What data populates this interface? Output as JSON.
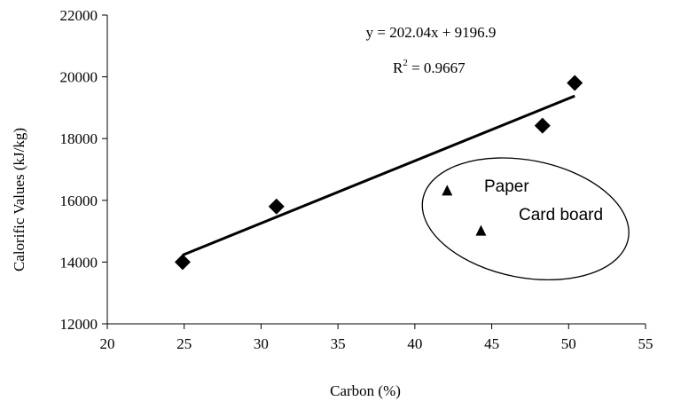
{
  "chart_data": {
    "type": "scatter",
    "title": "",
    "xlabel": "Carbon (%)",
    "ylabel": "Calorific Values (kJ/kg)",
    "xlim": [
      20,
      55
    ],
    "ylim": [
      12000,
      22000
    ],
    "x_ticks": [
      20,
      25,
      30,
      35,
      40,
      45,
      50,
      55
    ],
    "y_ticks": [
      12000,
      14000,
      16000,
      18000,
      20000,
      22000
    ],
    "grid": false,
    "legend": "none",
    "series": [
      {
        "marker": "diamond",
        "color": "#000000",
        "points": [
          {
            "x": 24.9,
            "y": 14000
          },
          {
            "x": 31.0,
            "y": 15800
          },
          {
            "x": 48.3,
            "y": 18420
          },
          {
            "x": 50.4,
            "y": 19800
          }
        ]
      },
      {
        "marker": "triangle",
        "color": "#000000",
        "points": [
          {
            "x": 42.1,
            "y": 16300
          },
          {
            "x": 44.3,
            "y": 15000
          }
        ]
      }
    ],
    "trendline": {
      "slope": 202.04,
      "intercept": 9196.9,
      "x_range": [
        24.9,
        50.4
      ],
      "equation_label": "y = 202.04x + 9196.9",
      "r2_prefix": "R",
      "r2_exponent": "2",
      "r2_value": " = 0.9667"
    },
    "annotations": {
      "paper_label": "Paper",
      "cardboard_label": "Card board",
      "ellipse_center": {
        "x": 47.2,
        "y": 15400
      },
      "ellipse_radius": {
        "x": 6.8,
        "y": 1900
      }
    }
  }
}
